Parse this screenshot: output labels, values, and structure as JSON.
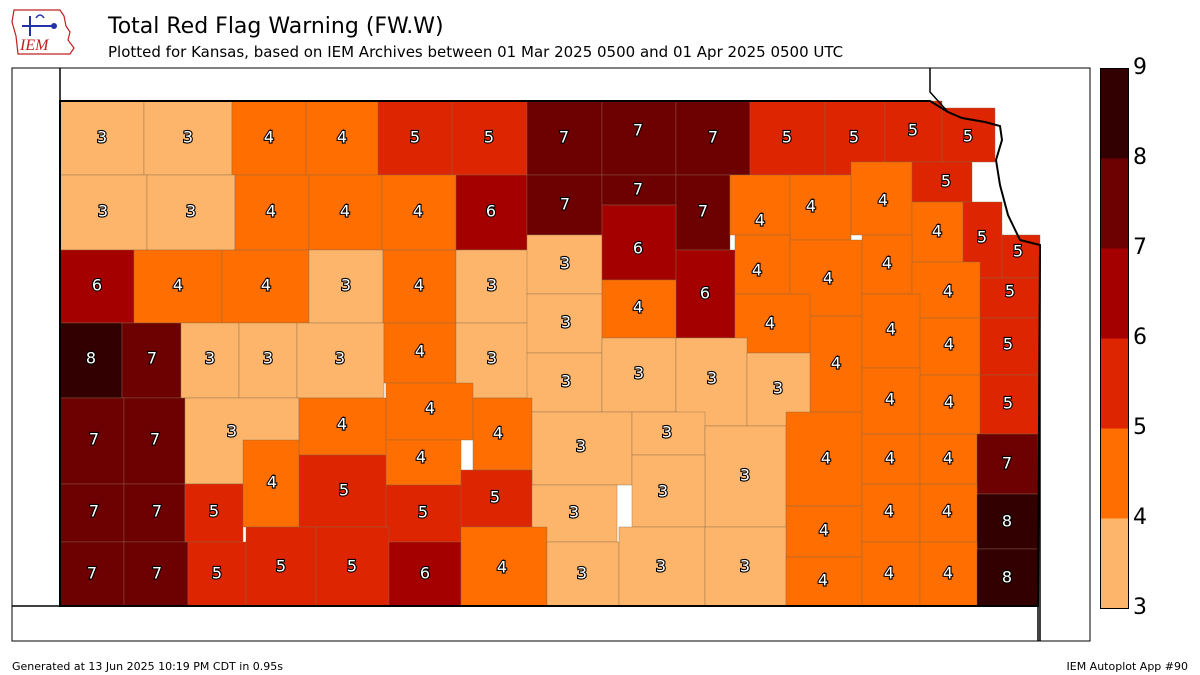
{
  "header": {
    "title": "Total Red Flag Warning (FW.W)",
    "subtitle": "Plotted for Kansas, based on IEM Archives  between 01 Mar 2025 0500 and 01 Apr 2025 0500 UTC",
    "logo_text": "IEM"
  },
  "footer": {
    "generated": "Generated at 13 Jun 2025 10:19 PM CDT in 0.95s",
    "app": "IEM Autoplot App #90"
  },
  "colorbar": {
    "ticks": [
      "9",
      "8",
      "7",
      "6",
      "5",
      "4",
      "3"
    ],
    "bins": [
      {
        "min": 3,
        "max": 4,
        "color": "#fdb56b"
      },
      {
        "min": 4,
        "max": 5,
        "color": "#fe6e00"
      },
      {
        "min": 5,
        "max": 6,
        "color": "#dd2501"
      },
      {
        "min": 6,
        "max": 7,
        "color": "#a50000"
      },
      {
        "min": 7,
        "max": 8,
        "color": "#6d0000"
      },
      {
        "min": 8,
        "max": 9,
        "color": "#320000"
      }
    ]
  },
  "counties": [
    {
      "value": 3,
      "x0": 60,
      "y0": 101,
      "x1": 144,
      "y1": 175,
      "lx": 102,
      "ly": 137
    },
    {
      "value": 3,
      "x0": 144,
      "y0": 101,
      "x1": 232,
      "y1": 175,
      "lx": 188,
      "ly": 137
    },
    {
      "value": 4,
      "x0": 232,
      "y0": 101,
      "x1": 306,
      "y1": 175,
      "lx": 269,
      "ly": 137
    },
    {
      "value": 4,
      "x0": 306,
      "y0": 101,
      "x1": 378,
      "y1": 175,
      "lx": 342,
      "ly": 137
    },
    {
      "value": 5,
      "x0": 378,
      "y0": 101,
      "x1": 452,
      "y1": 175,
      "lx": 415,
      "ly": 137
    },
    {
      "value": 5,
      "x0": 452,
      "y0": 101,
      "x1": 527,
      "y1": 175,
      "lx": 489,
      "ly": 137
    },
    {
      "value": 7,
      "x0": 527,
      "y0": 101,
      "x1": 602,
      "y1": 175,
      "lx": 564,
      "ly": 137
    },
    {
      "value": 7,
      "x0": 602,
      "y0": 101,
      "x1": 676,
      "y1": 175,
      "lx": 638,
      "ly": 130
    },
    {
      "value": 7,
      "x0": 676,
      "y0": 101,
      "x1": 750,
      "y1": 175,
      "lx": 713,
      "ly": 137
    },
    {
      "value": 5,
      "x0": 750,
      "y0": 101,
      "x1": 825,
      "y1": 175,
      "lx": 787,
      "ly": 137
    },
    {
      "value": 5,
      "x0": 825,
      "y0": 101,
      "x1": 885,
      "y1": 175,
      "lx": 854,
      "ly": 137
    },
    {
      "value": 5,
      "x0": 885,
      "y0": 101,
      "x1": 942,
      "y1": 162,
      "lx": 913,
      "ly": 130
    },
    {
      "value": 5,
      "x0": 942,
      "y0": 108,
      "x1": 995,
      "y1": 162,
      "lx": 968,
      "ly": 136
    },
    {
      "value": 3,
      "x0": 60,
      "y0": 175,
      "x1": 147,
      "y1": 250,
      "lx": 103,
      "ly": 211
    },
    {
      "value": 3,
      "x0": 147,
      "y0": 175,
      "x1": 235,
      "y1": 250,
      "lx": 191,
      "ly": 211
    },
    {
      "value": 4,
      "x0": 235,
      "y0": 175,
      "x1": 309,
      "y1": 250,
      "lx": 271,
      "ly": 211
    },
    {
      "value": 4,
      "x0": 309,
      "y0": 175,
      "x1": 382,
      "y1": 250,
      "lx": 345,
      "ly": 211
    },
    {
      "value": 4,
      "x0": 382,
      "y0": 175,
      "x1": 456,
      "y1": 250,
      "lx": 418,
      "ly": 211
    },
    {
      "value": 6,
      "x0": 456,
      "y0": 175,
      "x1": 527,
      "y1": 250,
      "lx": 491,
      "ly": 211
    },
    {
      "value": 7,
      "x0": 527,
      "y0": 175,
      "x1": 602,
      "y1": 235,
      "lx": 565,
      "ly": 204
    },
    {
      "value": 7,
      "x0": 602,
      "y0": 175,
      "x1": 676,
      "y1": 205,
      "lx": 638,
      "ly": 189
    },
    {
      "value": 7,
      "x0": 676,
      "y0": 175,
      "x1": 730,
      "y1": 250,
      "lx": 703,
      "ly": 211
    },
    {
      "value": 4,
      "x0": 730,
      "y0": 175,
      "x1": 790,
      "y1": 235,
      "lx": 760,
      "ly": 220
    },
    {
      "value": 4,
      "x0": 790,
      "y0": 175,
      "x1": 851,
      "y1": 240,
      "lx": 811,
      "ly": 206
    },
    {
      "value": 4,
      "x0": 851,
      "y0": 162,
      "x1": 912,
      "y1": 235,
      "lx": 883,
      "ly": 200
    },
    {
      "value": 5,
      "x0": 912,
      "y0": 162,
      "x1": 972,
      "y1": 202,
      "lx": 946,
      "ly": 181
    },
    {
      "value": 4,
      "x0": 912,
      "y0": 202,
      "x1": 963,
      "y1": 262,
      "lx": 937,
      "ly": 231
    },
    {
      "value": 5,
      "x0": 963,
      "y0": 202,
      "x1": 1002,
      "y1": 278,
      "lx": 982,
      "ly": 237
    },
    {
      "value": 5,
      "x0": 1002,
      "y0": 235,
      "x1": 1040,
      "y1": 278,
      "lx": 1018,
      "ly": 251
    },
    {
      "value": 6,
      "x0": 60,
      "y0": 250,
      "x1": 134,
      "y1": 323,
      "lx": 97,
      "ly": 285
    },
    {
      "value": 4,
      "x0": 134,
      "y0": 250,
      "x1": 222,
      "y1": 323,
      "lx": 178,
      "ly": 285
    },
    {
      "value": 4,
      "x0": 222,
      "y0": 250,
      "x1": 309,
      "y1": 323,
      "lx": 266,
      "ly": 285
    },
    {
      "value": 3,
      "x0": 309,
      "y0": 250,
      "x1": 383,
      "y1": 323,
      "lx": 346,
      "ly": 285
    },
    {
      "value": 4,
      "x0": 383,
      "y0": 250,
      "x1": 456,
      "y1": 323,
      "lx": 419,
      "ly": 285
    },
    {
      "value": 3,
      "x0": 456,
      "y0": 250,
      "x1": 530,
      "y1": 323,
      "lx": 492,
      "ly": 285
    },
    {
      "value": 3,
      "x0": 527,
      "y0": 235,
      "x1": 602,
      "y1": 294,
      "lx": 565,
      "ly": 263
    },
    {
      "value": 6,
      "x0": 602,
      "y0": 205,
      "x1": 676,
      "y1": 280,
      "lx": 638,
      "ly": 248
    },
    {
      "value": 6,
      "x0": 676,
      "y0": 250,
      "x1": 735,
      "y1": 338,
      "lx": 705,
      "ly": 293
    },
    {
      "value": 4,
      "x0": 735,
      "y0": 235,
      "x1": 790,
      "y1": 294,
      "lx": 757,
      "ly": 270
    },
    {
      "value": 4,
      "x0": 790,
      "y0": 240,
      "x1": 862,
      "y1": 316,
      "lx": 828,
      "ly": 278
    },
    {
      "value": 4,
      "x0": 862,
      "y0": 235,
      "x1": 912,
      "y1": 294,
      "lx": 887,
      "ly": 263
    },
    {
      "value": 4,
      "x0": 912,
      "y0": 262,
      "x1": 980,
      "y1": 318,
      "lx": 948,
      "ly": 291
    },
    {
      "value": 5,
      "x0": 980,
      "y0": 278,
      "x1": 1039,
      "y1": 318,
      "lx": 1010,
      "ly": 291
    },
    {
      "value": 8,
      "x0": 60,
      "y0": 323,
      "x1": 122,
      "y1": 398,
      "lx": 91,
      "ly": 358
    },
    {
      "value": 7,
      "x0": 122,
      "y0": 323,
      "x1": 181,
      "y1": 398,
      "lx": 152,
      "ly": 358
    },
    {
      "value": 3,
      "x0": 181,
      "y0": 323,
      "x1": 239,
      "y1": 398,
      "lx": 210,
      "ly": 358
    },
    {
      "value": 3,
      "x0": 239,
      "y0": 323,
      "x1": 297,
      "y1": 398,
      "lx": 268,
      "ly": 358
    },
    {
      "value": 3,
      "x0": 297,
      "y0": 323,
      "x1": 384,
      "y1": 398,
      "lx": 340,
      "ly": 358
    },
    {
      "value": 4,
      "x0": 384,
      "y0": 323,
      "x1": 456,
      "y1": 383,
      "lx": 420,
      "ly": 351
    },
    {
      "value": 3,
      "x0": 456,
      "y0": 323,
      "x1": 530,
      "y1": 398,
      "lx": 492,
      "ly": 358
    },
    {
      "value": 3,
      "x0": 527,
      "y0": 294,
      "x1": 602,
      "y1": 353,
      "lx": 566,
      "ly": 322
    },
    {
      "value": 4,
      "x0": 602,
      "y0": 280,
      "x1": 676,
      "y1": 338,
      "lx": 638,
      "ly": 307
    },
    {
      "value": 4,
      "x0": 735,
      "y0": 294,
      "x1": 810,
      "y1": 353,
      "lx": 770,
      "ly": 323
    },
    {
      "value": 4,
      "x0": 810,
      "y0": 316,
      "x1": 862,
      "y1": 412,
      "lx": 836,
      "ly": 363
    },
    {
      "value": 4,
      "x0": 862,
      "y0": 294,
      "x1": 920,
      "y1": 368,
      "lx": 891,
      "ly": 329
    },
    {
      "value": 4,
      "x0": 920,
      "y0": 318,
      "x1": 980,
      "y1": 375,
      "lx": 949,
      "ly": 344
    },
    {
      "value": 5,
      "x0": 980,
      "y0": 318,
      "x1": 1039,
      "y1": 375,
      "lx": 1008,
      "ly": 344
    },
    {
      "value": 3,
      "x0": 527,
      "y0": 353,
      "x1": 602,
      "y1": 412,
      "lx": 566,
      "ly": 381
    },
    {
      "value": 3,
      "x0": 602,
      "y0": 338,
      "x1": 676,
      "y1": 412,
      "lx": 639,
      "ly": 373
    },
    {
      "value": 3,
      "x0": 676,
      "y0": 338,
      "x1": 747,
      "y1": 426,
      "lx": 712,
      "ly": 378
    },
    {
      "value": 3,
      "x0": 747,
      "y0": 353,
      "x1": 810,
      "y1": 426,
      "lx": 778,
      "ly": 388
    },
    {
      "value": 7,
      "x0": 60,
      "y0": 398,
      "x1": 124,
      "y1": 484,
      "lx": 94,
      "ly": 439
    },
    {
      "value": 7,
      "x0": 124,
      "y0": 398,
      "x1": 185,
      "y1": 484,
      "lx": 155,
      "ly": 439
    },
    {
      "value": 3,
      "x0": 185,
      "y0": 398,
      "x1": 299,
      "y1": 484,
      "lx": 232,
      "ly": 431
    },
    {
      "value": 4,
      "x0": 299,
      "y0": 398,
      "x1": 386,
      "y1": 455,
      "lx": 342,
      "ly": 424
    },
    {
      "value": 4,
      "x0": 386,
      "y0": 383,
      "x1": 473,
      "y1": 440,
      "lx": 430,
      "ly": 408
    },
    {
      "value": 4,
      "x0": 473,
      "y0": 398,
      "x1": 532,
      "y1": 470,
      "lx": 498,
      "ly": 433
    },
    {
      "value": 3,
      "x0": 532,
      "y0": 412,
      "x1": 632,
      "y1": 485,
      "lx": 581,
      "ly": 446
    },
    {
      "value": 3,
      "x0": 632,
      "y0": 412,
      "x1": 705,
      "y1": 455,
      "lx": 667,
      "ly": 432
    },
    {
      "value": 3,
      "x0": 705,
      "y0": 426,
      "x1": 786,
      "y1": 527,
      "lx": 745,
      "ly": 475
    },
    {
      "value": 4,
      "x0": 786,
      "y0": 412,
      "x1": 862,
      "y1": 506,
      "lx": 826,
      "ly": 458
    },
    {
      "value": 4,
      "x0": 862,
      "y0": 368,
      "x1": 920,
      "y1": 434,
      "lx": 890,
      "ly": 399
    },
    {
      "value": 4,
      "x0": 920,
      "y0": 375,
      "x1": 980,
      "y1": 434,
      "lx": 949,
      "ly": 402
    },
    {
      "value": 5,
      "x0": 980,
      "y0": 375,
      "x1": 1039,
      "y1": 434,
      "lx": 1008,
      "ly": 403
    },
    {
      "value": 4,
      "x0": 386,
      "y0": 440,
      "x1": 461,
      "y1": 485,
      "lx": 421,
      "ly": 457
    },
    {
      "value": 4,
      "x0": 243,
      "y0": 440,
      "x1": 299,
      "y1": 527,
      "lx": 272,
      "ly": 482
    },
    {
      "value": 5,
      "x0": 299,
      "y0": 455,
      "x1": 386,
      "y1": 527,
      "lx": 344,
      "ly": 490
    },
    {
      "value": 5,
      "x0": 461,
      "y0": 470,
      "x1": 532,
      "y1": 527,
      "lx": 495,
      "ly": 497
    },
    {
      "value": 3,
      "x0": 632,
      "y0": 455,
      "x1": 705,
      "y1": 527,
      "lx": 663,
      "ly": 491
    },
    {
      "value": 4,
      "x0": 862,
      "y0": 434,
      "x1": 920,
      "y1": 484,
      "lx": 890,
      "ly": 458
    },
    {
      "value": 4,
      "x0": 920,
      "y0": 434,
      "x1": 977,
      "y1": 484,
      "lx": 948,
      "ly": 458
    },
    {
      "value": 7,
      "x0": 977,
      "y0": 434,
      "x1": 1038,
      "y1": 494,
      "lx": 1007,
      "ly": 463
    },
    {
      "value": 7,
      "x0": 60,
      "y0": 484,
      "x1": 124,
      "y1": 542,
      "lx": 94,
      "ly": 511
    },
    {
      "value": 7,
      "x0": 124,
      "y0": 484,
      "x1": 185,
      "y1": 542,
      "lx": 157,
      "ly": 511
    },
    {
      "value": 5,
      "x0": 185,
      "y0": 484,
      "x1": 243,
      "y1": 542,
      "lx": 214,
      "ly": 511
    },
    {
      "value": 5,
      "x0": 386,
      "y0": 485,
      "x1": 461,
      "y1": 542,
      "lx": 423,
      "ly": 512
    },
    {
      "value": 3,
      "x0": 532,
      "y0": 485,
      "x1": 617,
      "y1": 542,
      "lx": 574,
      "ly": 512
    },
    {
      "value": 4,
      "x0": 786,
      "y0": 506,
      "x1": 862,
      "y1": 557,
      "lx": 824,
      "ly": 530
    },
    {
      "value": 4,
      "x0": 862,
      "y0": 484,
      "x1": 920,
      "y1": 542,
      "lx": 889,
      "ly": 511
    },
    {
      "value": 4,
      "x0": 920,
      "y0": 484,
      "x1": 977,
      "y1": 542,
      "lx": 947,
      "ly": 511
    },
    {
      "value": 8,
      "x0": 977,
      "y0": 494,
      "x1": 1038,
      "y1": 549,
      "lx": 1007,
      "ly": 521
    },
    {
      "value": 7,
      "x0": 60,
      "y0": 542,
      "x1": 124,
      "y1": 606,
      "lx": 92,
      "ly": 573
    },
    {
      "value": 7,
      "x0": 124,
      "y0": 542,
      "x1": 188,
      "y1": 606,
      "lx": 157,
      "ly": 573
    },
    {
      "value": 5,
      "x0": 188,
      "y0": 542,
      "x1": 246,
      "y1": 606,
      "lx": 217,
      "ly": 573
    },
    {
      "value": 5,
      "x0": 246,
      "y0": 527,
      "x1": 316,
      "y1": 606,
      "lx": 281,
      "ly": 566
    },
    {
      "value": 5,
      "x0": 316,
      "y0": 527,
      "x1": 389,
      "y1": 606,
      "lx": 352,
      "ly": 566
    },
    {
      "value": 6,
      "x0": 389,
      "y0": 542,
      "x1": 461,
      "y1": 606,
      "lx": 425,
      "ly": 573
    },
    {
      "value": 4,
      "x0": 461,
      "y0": 527,
      "x1": 547,
      "y1": 606,
      "lx": 502,
      "ly": 567
    },
    {
      "value": 3,
      "x0": 547,
      "y0": 542,
      "x1": 619,
      "y1": 606,
      "lx": 582,
      "ly": 573
    },
    {
      "value": 3,
      "x0": 619,
      "y0": 527,
      "x1": 705,
      "y1": 606,
      "lx": 661,
      "ly": 566
    },
    {
      "value": 3,
      "x0": 705,
      "y0": 527,
      "x1": 786,
      "y1": 606,
      "lx": 745,
      "ly": 566
    },
    {
      "value": 4,
      "x0": 786,
      "y0": 557,
      "x1": 862,
      "y1": 606,
      "lx": 823,
      "ly": 580
    },
    {
      "value": 4,
      "x0": 862,
      "y0": 542,
      "x1": 920,
      "y1": 606,
      "lx": 889,
      "ly": 573
    },
    {
      "value": 4,
      "x0": 920,
      "y0": 542,
      "x1": 977,
      "y1": 606,
      "lx": 948,
      "ly": 573
    },
    {
      "value": 8,
      "x0": 977,
      "y0": 549,
      "x1": 1038,
      "y1": 606,
      "lx": 1007,
      "ly": 577
    }
  ]
}
